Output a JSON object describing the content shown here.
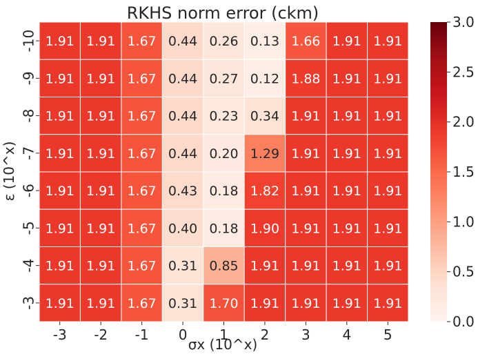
{
  "chart_data": {
    "type": "heatmap",
    "title": "RKHS norm error (ckm)",
    "xlabel": "σx (10^x)",
    "ylabel": "ε (10^x)",
    "x_categories": [
      "-3",
      "-2",
      "-1",
      "0",
      "1",
      "2",
      "3",
      "4",
      "5"
    ],
    "y_categories": [
      "-10",
      "-9",
      "-8",
      "-7",
      "-6",
      "-5",
      "-4",
      "-3"
    ],
    "values": [
      [
        "1.91",
        "1.91",
        "1.67",
        "0.44",
        "0.26",
        "0.13",
        "1.66",
        "1.91",
        "1.91"
      ],
      [
        "1.91",
        "1.91",
        "1.67",
        "0.44",
        "0.27",
        "0.12",
        "1.88",
        "1.91",
        "1.91"
      ],
      [
        "1.91",
        "1.91",
        "1.67",
        "0.44",
        "0.23",
        "0.34",
        "1.91",
        "1.91",
        "1.91"
      ],
      [
        "1.91",
        "1.91",
        "1.67",
        "0.44",
        "0.20",
        "1.29",
        "1.91",
        "1.91",
        "1.91"
      ],
      [
        "1.91",
        "1.91",
        "1.67",
        "0.43",
        "0.18",
        "1.82",
        "1.91",
        "1.91",
        "1.91"
      ],
      [
        "1.91",
        "1.91",
        "1.67",
        "0.40",
        "0.18",
        "1.90",
        "1.91",
        "1.91",
        "1.91"
      ],
      [
        "1.91",
        "1.91",
        "1.67",
        "0.31",
        "0.85",
        "1.91",
        "1.91",
        "1.91",
        "1.91"
      ],
      [
        "1.91",
        "1.91",
        "1.67",
        "0.31",
        "1.70",
        "1.91",
        "1.91",
        "1.91",
        "1.91"
      ]
    ],
    "colorbar": {
      "min": 0,
      "max": 3,
      "ticks": [
        "0.0",
        "0.5",
        "1.0",
        "1.5",
        "2.0",
        "2.5",
        "3.0"
      ],
      "colormap": "Reds"
    },
    "grid": false
  }
}
